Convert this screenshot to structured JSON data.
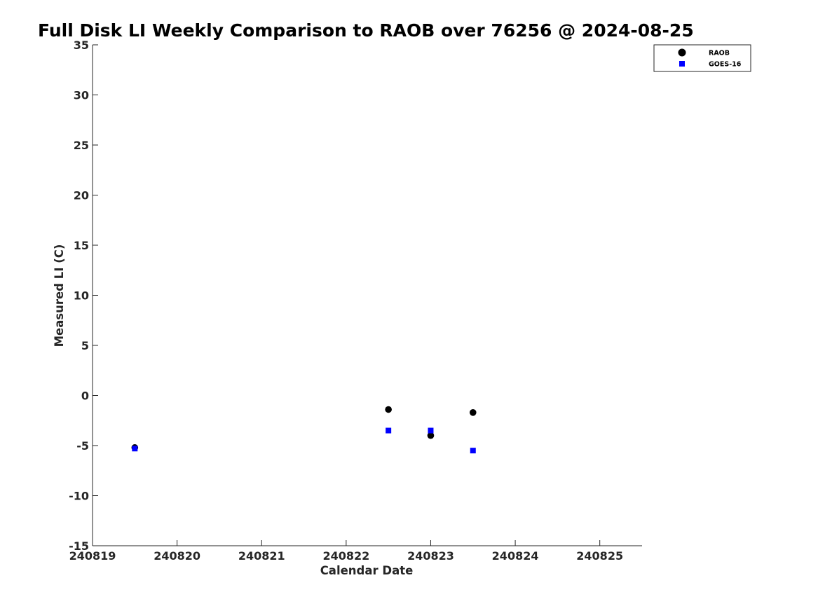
{
  "chart_data": {
    "type": "scatter",
    "title": "Full Disk LI Weekly Comparison to RAOB over 76256 @ 2024-08-25",
    "xlabel": "Calendar Date",
    "ylabel": "Measured LI (C)",
    "xlim": [
      "240819",
      "240825.5"
    ],
    "ylim": [
      -15,
      35
    ],
    "x_ticks": [
      "240819",
      "240820",
      "240821",
      "240822",
      "240823",
      "240824",
      "240825"
    ],
    "y_ticks": [
      35,
      30,
      25,
      20,
      15,
      10,
      5,
      0,
      -5,
      -10,
      -15
    ],
    "grid": false,
    "legend_position": "top-right",
    "series": [
      {
        "name": "RAOB",
        "marker": "circle",
        "color": "#000000",
        "points": [
          {
            "x": "240819.5",
            "y": -5.2
          },
          {
            "x": "240822.5",
            "y": -1.4
          },
          {
            "x": "240823.0",
            "y": -4.0
          },
          {
            "x": "240823.5",
            "y": -1.7
          }
        ]
      },
      {
        "name": "GOES-16",
        "marker": "square",
        "color": "#0000ff",
        "points": [
          {
            "x": "240819.5",
            "y": -5.3
          },
          {
            "x": "240822.5",
            "y": -3.5
          },
          {
            "x": "240823.0",
            "y": -3.5
          },
          {
            "x": "240823.5",
            "y": -5.5
          }
        ]
      }
    ]
  }
}
